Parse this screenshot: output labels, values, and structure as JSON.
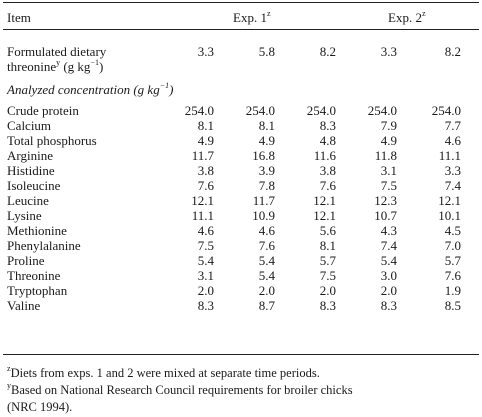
{
  "table": {
    "header": {
      "item": "Item",
      "exp1": "Exp. 1",
      "exp1_mark": "z",
      "exp2": "Exp. 2",
      "exp2_mark": "z"
    },
    "formulated": {
      "label_line1": "Formulated dietary",
      "label_line2": "threonine",
      "label_mark": "y",
      "label_unit": " (g kg",
      "label_exp": "−1",
      "label_close": ")",
      "values": [
        "3.3",
        "5.8",
        "8.2",
        "3.3",
        "8.2"
      ]
    },
    "section_label": {
      "text": "Analyzed concentration (g kg",
      "exp": "−1",
      "close": ")"
    },
    "rows": [
      {
        "label": "Crude protein",
        "values": [
          "254.0",
          "254.0",
          "254.0",
          "254.0",
          "254.0"
        ]
      },
      {
        "label": "Calcium",
        "values": [
          "8.1",
          "8.1",
          "8.3",
          "7.9",
          "7.7"
        ]
      },
      {
        "label": "Total phosphorus",
        "values": [
          "4.9",
          "4.9",
          "4.8",
          "4.9",
          "4.6"
        ]
      },
      {
        "label": "Arginine",
        "values": [
          "11.7",
          "16.8",
          "11.6",
          "11.8",
          "11.1"
        ]
      },
      {
        "label": "Histidine",
        "values": [
          "3.8",
          "3.9",
          "3.8",
          "3.1",
          "3.3"
        ]
      },
      {
        "label": "Isoleucine",
        "values": [
          "7.6",
          "7.8",
          "7.6",
          "7.5",
          "7.4"
        ]
      },
      {
        "label": "Leucine",
        "values": [
          "12.1",
          "11.7",
          "12.1",
          "12.3",
          "12.1"
        ]
      },
      {
        "label": "Lysine",
        "values": [
          "11.1",
          "10.9",
          "12.1",
          "10.7",
          "10.1"
        ]
      },
      {
        "label": "Methionine",
        "values": [
          "4.6",
          "4.6",
          "5.6",
          "4.3",
          "4.5"
        ]
      },
      {
        "label": "Phenylalanine",
        "values": [
          "7.5",
          "7.6",
          "8.1",
          "7.4",
          "7.0"
        ]
      },
      {
        "label": "Proline",
        "values": [
          "5.4",
          "5.4",
          "5.7",
          "5.4",
          "5.7"
        ]
      },
      {
        "label": "Threonine",
        "values": [
          "3.1",
          "5.4",
          "7.5",
          "3.0",
          "7.6"
        ]
      },
      {
        "label": "Tryptophan",
        "values": [
          "2.0",
          "2.0",
          "2.0",
          "2.0",
          "1.9"
        ]
      },
      {
        "label": "Valine",
        "values": [
          "8.3",
          "8.7",
          "8.3",
          "8.3",
          "8.5"
        ]
      }
    ]
  },
  "footnotes": {
    "z_mark": "z",
    "z_text": "Diets from exps. 1 and 2 were mixed at separate time periods.",
    "y_mark": "y",
    "y_text_line1": "Based on National Research Council requirements for broiler chicks",
    "y_text_line2": "(NRC 1994)."
  }
}
